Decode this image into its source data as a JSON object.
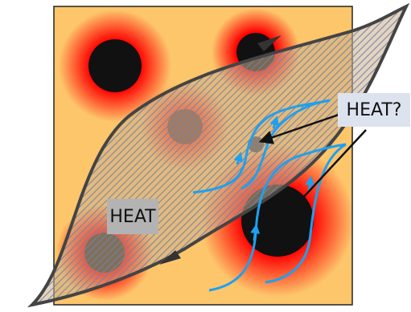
{
  "labels": {
    "heat": "HEAT",
    "heat_question": "HEAT?"
  }
}
